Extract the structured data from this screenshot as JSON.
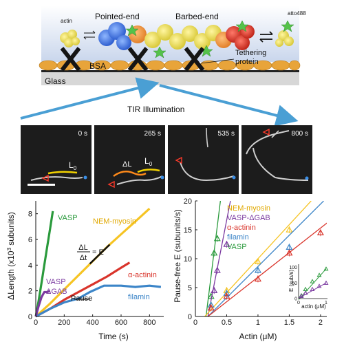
{
  "schematic": {
    "actin_label": "actin",
    "atto_label": "atto488",
    "pointed_end": "Pointed-end",
    "barbed_end": "Barbed-end",
    "bsa_label": "BSA",
    "tethering_line1": "Tethering",
    "tethering_line2": "protein",
    "glass_label": "Glass",
    "tir_label": "TIR Illumination"
  },
  "micrographs": {
    "frames": [
      {
        "time": "0 s"
      },
      {
        "time": "265 s"
      },
      {
        "time": "535 s"
      },
      {
        "time": "800 s"
      }
    ],
    "l0_label": "L",
    "l0_sub": "0",
    "dl_label": "ΔL"
  },
  "chart_data": [
    {
      "type": "line",
      "xlabel": "Time (s)",
      "ylabel": "ΔLength (x10",
      "ylabel_sup": "3",
      "ylabel_tail": " subunits)",
      "xlim": [
        0,
        900
      ],
      "ylim": [
        0,
        9
      ],
      "xticks": [
        0,
        200,
        400,
        600,
        800
      ],
      "yticks": [
        0,
        2,
        4,
        6,
        8
      ],
      "series": [
        {
          "name": "VASP",
          "color": "#2a9a3c",
          "points": [
            [
              0,
              0
            ],
            [
              20,
              1.2
            ],
            [
              40,
              2.6
            ],
            [
              60,
              4.0
            ],
            [
              80,
              5.4
            ],
            [
              100,
              6.8
            ],
            [
              120,
              8.2
            ]
          ]
        },
        {
          "name": "NEM-myosin",
          "color": "#f6c423",
          "points": [
            [
              0,
              0
            ],
            [
              100,
              1.0
            ],
            [
              200,
              2.1
            ],
            [
              300,
              3.2
            ],
            [
              400,
              4.3
            ],
            [
              500,
              5.4
            ],
            [
              600,
              6.4
            ],
            [
              700,
              7.4
            ],
            [
              800,
              8.4
            ]
          ]
        },
        {
          "name": "α-actinin",
          "color": "#d9342b",
          "points": [
            [
              0,
              0
            ],
            [
              100,
              0.6
            ],
            [
              200,
              1.3
            ],
            [
              300,
              1.9
            ],
            [
              400,
              2.5
            ],
            [
              500,
              3.1
            ],
            [
              600,
              3.8
            ],
            [
              660,
              4.2
            ]
          ]
        },
        {
          "name": "filamin",
          "color": "#3c85c8",
          "points": [
            [
              0,
              0
            ],
            [
              100,
              0.6
            ],
            [
              200,
              1.1
            ],
            [
              300,
              1.4
            ],
            [
              380,
              1.9
            ],
            [
              480,
              2.4
            ],
            [
              600,
              2.4
            ],
            [
              700,
              2.3
            ],
            [
              800,
              2.4
            ],
            [
              880,
              2.3
            ]
          ]
        },
        {
          "name": "VASP ΔGAB",
          "color": "#7b3aa0",
          "points": [
            [
              0,
              0
            ],
            [
              20,
              0.8
            ],
            [
              40,
              1.5
            ],
            [
              60,
              1.9
            ],
            [
              80,
              1.9
            ],
            [
              100,
              2.0
            ]
          ]
        }
      ],
      "annotations": {
        "equation_top": "ΔL",
        "equation_bottom": "Δt",
        "equation_eq": "= E",
        "pause": "Pause",
        "vasp_label": "VASP",
        "nem_label": "NEM-myosin",
        "actinin_label": "α-actinin",
        "filamin_label": "filamin",
        "vasp_dgab_line1": "VASP",
        "vasp_dgab_line2": "ΔGAB"
      }
    },
    {
      "type": "scatter",
      "xlabel": "Actin (μM)",
      "ylabel": "Pause-free E (subunits/s)",
      "xlim": [
        0,
        2.1
      ],
      "ylim": [
        0,
        20
      ],
      "xticks": [
        0,
        0.5,
        1,
        1.5,
        2
      ],
      "xtick_labels": [
        "0",
        "0.5",
        "1",
        "1.5",
        "2"
      ],
      "yticks": [
        0,
        5,
        10,
        15,
        20
      ],
      "legend": [
        "NEM-myosin",
        "VASP-ΔGAB",
        "α-actinin",
        "filamin",
        "VASP"
      ],
      "series": [
        {
          "name": "VASP",
          "color": "#2a9a3c",
          "line": [
            [
              0.17,
              0
            ],
            [
              0.4,
              20
            ]
          ],
          "points": [
            [
              0.25,
              3.5
            ],
            [
              0.3,
              11
            ],
            [
              0.35,
              13.5
            ]
          ]
        },
        {
          "name": "VASP-ΔGAB",
          "color": "#7b3aa0",
          "line": [
            [
              0.2,
              0
            ],
            [
              0.56,
              20
            ]
          ],
          "points": [
            [
              0.3,
              4.5
            ],
            [
              0.35,
              8
            ],
            [
              0.5,
              12.5
            ]
          ]
        },
        {
          "name": "NEM-myosin",
          "color": "#f6c423",
          "line": [
            [
              0.15,
              0
            ],
            [
              1.85,
              20
            ]
          ],
          "points": [
            [
              0.25,
              2.0
            ],
            [
              0.5,
              4.5
            ],
            [
              1.0,
              9.5
            ],
            [
              1.5,
              15
            ]
          ]
        },
        {
          "name": "filamin",
          "color": "#3c85c8",
          "line": [
            [
              0.2,
              0
            ],
            [
              2.05,
              20
            ]
          ],
          "points": [
            [
              0.25,
              2.0
            ],
            [
              0.5,
              4.0
            ],
            [
              1.0,
              8.0
            ],
            [
              1.5,
              12
            ]
          ]
        },
        {
          "name": "α-actinin",
          "color": "#d9342b",
          "line": [
            [
              0.2,
              0
            ],
            [
              2.2,
              17
            ]
          ],
          "points": [
            [
              0.25,
              1.5
            ],
            [
              0.5,
              3.5
            ],
            [
              1.0,
              6.5
            ],
            [
              1.5,
              11
            ],
            [
              2.0,
              14.5
            ]
          ]
        }
      ],
      "inset": {
        "ylabel": "E (sub/s)",
        "xlabel": "actin (μM)",
        "xticks": [
          "0",
          "1"
        ],
        "yticks": [
          "0",
          "50",
          "100"
        ],
        "series": [
          {
            "name": "VASP",
            "color": "#2a9a3c",
            "points": [
              [
                0.1,
                10
              ],
              [
                0.25,
                30
              ],
              [
                0.5,
                55
              ],
              [
                0.75,
                75
              ],
              [
                1.0,
                95
              ]
            ]
          },
          {
            "name": "VASP-ΔGAB",
            "color": "#7b3aa0",
            "points": [
              [
                0.1,
                8
              ],
              [
                0.25,
                18
              ],
              [
                0.5,
                30
              ],
              [
                0.75,
                40
              ],
              [
                1.0,
                50
              ]
            ]
          }
        ]
      }
    }
  ],
  "colors": {
    "vasp": "#2a9a3c",
    "nem": "#f6c423",
    "actinin": "#d9342b",
    "filamin": "#3c85c8",
    "vasp_dgab": "#7b3aa0",
    "arrow": "#4a9fd4"
  }
}
